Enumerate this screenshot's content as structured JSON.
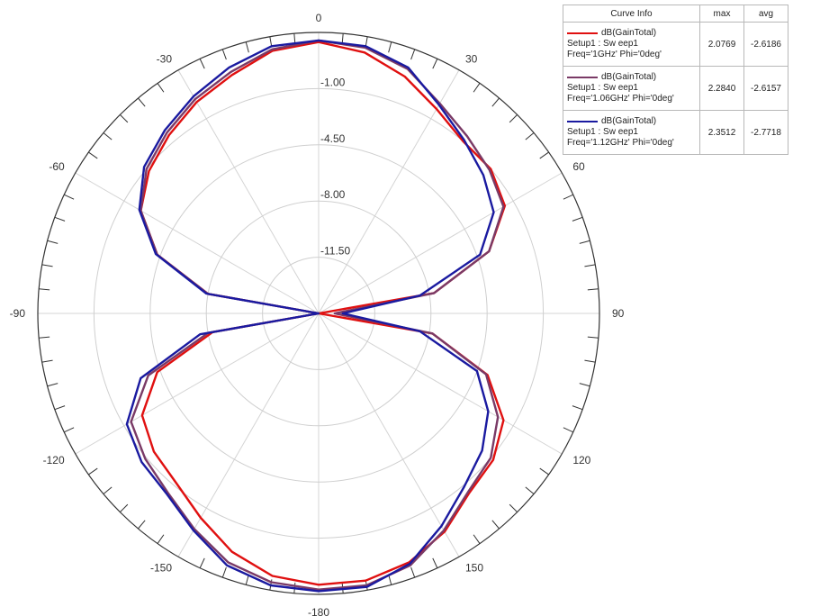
{
  "chart_data": {
    "type": "polar-line",
    "title": "",
    "angle_ticks": [
      0,
      30,
      60,
      90,
      120,
      150,
      -180,
      -150,
      -120,
      -90,
      -60,
      -30
    ],
    "angle_direction": "clockwise, 0 at top",
    "radial_range": [
      -15,
      2.5
    ],
    "radial_ticks": [
      -11.5,
      -8.0,
      -4.5,
      -1.0
    ],
    "radial_tick_labels": [
      "-11.50",
      "-8.00",
      "-4.50",
      "-1.00"
    ],
    "grid": true,
    "legend_position": "top-right",
    "series": [
      {
        "curve": "dB(GainTotal)",
        "setup": "Setup1 : Sw eep1",
        "freq": "Freq='1GHz' Phi='0deg'",
        "color": "#e01010",
        "max": "2.0769",
        "avg": "-2.6186",
        "theta": [
          0,
          10,
          20,
          30,
          40,
          50,
          60,
          70,
          80,
          90,
          100,
          110,
          120,
          130,
          140,
          150,
          160,
          170,
          180,
          190,
          200,
          210,
          220,
          230,
          240,
          250,
          260,
          270,
          280,
          290,
          300,
          310,
          320,
          330,
          340,
          350
        ],
        "values": [
          1.9,
          1.5,
          0.7,
          -0.3,
          -1.0,
          -1.0,
          -1.6,
          -3.7,
          -7.7,
          -15,
          -7.8,
          -3.8,
          -1.7,
          -0.8,
          -0.4,
          0.7,
          1.5,
          1.9,
          1.9,
          1.6,
          0.8,
          -0.3,
          -1.2,
          -1.6,
          -2.3,
          -4.3,
          -8.3,
          -15,
          -8.0,
          -4.3,
          -2.2,
          -1.2,
          -0.5,
          0.2,
          0.8,
          1.6
        ]
      },
      {
        "curve": "dB(GainTotal)",
        "setup": "Setup1 : Sw eep1",
        "freq": "Freq='1.06GHz' Phi='0deg'",
        "color": "#7a3a66",
        "max": "2.2840",
        "avg": "-2.6157",
        "theta": [
          0,
          10,
          20,
          30,
          40,
          50,
          60,
          70,
          80,
          90,
          100,
          110,
          120,
          130,
          140,
          150,
          160,
          170,
          180,
          190,
          200,
          210,
          220,
          230,
          240,
          250,
          260,
          270,
          280,
          290,
          300,
          310,
          320,
          330,
          340,
          350
        ],
        "values": [
          2.0,
          1.8,
          1.2,
          0.1,
          -0.6,
          -1.1,
          -1.7,
          -3.7,
          -7.7,
          -14,
          -7.8,
          -3.9,
          -2.1,
          -1.0,
          -0.5,
          0.6,
          1.7,
          2.2,
          2.2,
          2.0,
          1.5,
          0.5,
          -0.4,
          -0.9,
          -1.5,
          -3.7,
          -8.0,
          -15,
          -8.0,
          -4.3,
          -2.2,
          -1.0,
          -0.3,
          0.4,
          1.0,
          1.7
        ]
      },
      {
        "curve": "dB(GainTotal)",
        "setup": "Setup1 : Sw eep1",
        "freq": "Freq='1.12GHz' Phi='0deg'",
        "color": "#1a1aa0",
        "max": "2.3512",
        "avg": "-2.7718",
        "theta": [
          0,
          10,
          20,
          30,
          40,
          50,
          60,
          70,
          80,
          90,
          100,
          110,
          120,
          130,
          140,
          150,
          160,
          170,
          180,
          190,
          200,
          210,
          220,
          230,
          240,
          250,
          260,
          270,
          280,
          290,
          300,
          310,
          320,
          330,
          340,
          350
        ],
        "values": [
          2.0,
          1.9,
          1.3,
          0.0,
          -0.9,
          -1.6,
          -2.4,
          -4.3,
          -8.6,
          -13.5,
          -8.6,
          -4.5,
          -2.8,
          -1.7,
          -0.9,
          0.3,
          1.6,
          2.3,
          2.3,
          2.2,
          1.7,
          0.6,
          -0.3,
          -0.6,
          -1.2,
          -3.2,
          -7.5,
          -15,
          -7.9,
          -4.2,
          -2.1,
          -0.8,
          -0.1,
          0.6,
          1.3,
          1.9
        ]
      }
    ]
  },
  "legend": {
    "col_curve": "Curve Info",
    "col_max": "max",
    "col_avg": "avg"
  }
}
